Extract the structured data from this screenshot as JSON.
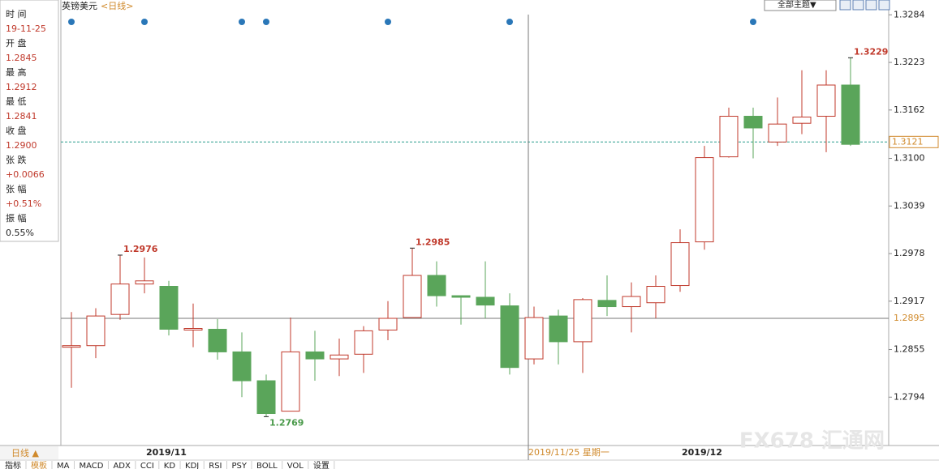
{
  "chart_data": {
    "type": "candlestick",
    "title": "英镑美元",
    "period": "<日线>",
    "theme_button": "全部主题▼",
    "categories": [
      null,
      null,
      null,
      "2019/11",
      null,
      null,
      null,
      null,
      null,
      null,
      null,
      null,
      null,
      null,
      null,
      null,
      null,
      null,
      null,
      null,
      null,
      null,
      null,
      null,
      null,
      "2019/12",
      null,
      null,
      null,
      null,
      null,
      null,
      null
    ],
    "open": [
      1.2858,
      1.286,
      1.29,
      1.2939,
      1.2936,
      1.288,
      1.2881,
      1.2852,
      1.2815,
      1.2776,
      1.2852,
      1.2843,
      1.2849,
      1.288,
      1.2896,
      1.295,
      1.2924,
      1.2922,
      1.2911,
      1.2843,
      1.2898,
      1.2865,
      1.2918,
      1.291,
      1.2915,
      1.2937,
      1.2993,
      1.3102,
      1.3154,
      1.3121,
      1.3145,
      1.3154,
      1.3194
    ],
    "high": [
      1.2903,
      1.2908,
      1.2976,
      1.2973,
      1.2943,
      1.2914,
      1.2894,
      1.2877,
      1.2823,
      1.2896,
      1.2879,
      1.2869,
      1.2885,
      1.2917,
      1.2985,
      1.2968,
      1.2924,
      1.2968,
      1.2927,
      1.291,
      1.2906,
      1.2921,
      1.295,
      1.2941,
      1.295,
      1.3009,
      1.3116,
      1.3165,
      1.3165,
      1.3178,
      1.3213,
      1.3213,
      1.3229
    ],
    "low": [
      1.2806,
      1.2844,
      1.2893,
      1.2927,
      1.2873,
      1.2858,
      1.2842,
      1.2794,
      1.2769,
      1.2776,
      1.2815,
      1.2821,
      1.2825,
      1.2867,
      1.2896,
      1.291,
      1.2887,
      1.2895,
      1.2823,
      1.2836,
      1.2836,
      1.2825,
      1.2898,
      1.2877,
      1.2895,
      1.2929,
      1.2983,
      1.3101,
      1.31,
      1.3116,
      1.3131,
      1.3108,
      1.3116
    ],
    "close": [
      1.286,
      1.2898,
      1.2939,
      1.2943,
      1.2881,
      1.2882,
      1.2852,
      1.2815,
      1.2773,
      1.2852,
      1.2843,
      1.2848,
      1.2879,
      1.2895,
      1.295,
      1.2924,
      1.2922,
      1.2912,
      1.2832,
      1.2896,
      1.2865,
      1.2919,
      1.291,
      1.2923,
      1.2936,
      1.2992,
      1.3101,
      1.3154,
      1.3139,
      1.3144,
      1.3153,
      1.3194,
      1.3118
    ],
    "up_color": "#c0392b",
    "down_color": "#5aa55a",
    "ylim": [
      1.2732,
      1.3303
    ],
    "yticks": [
      1.2794,
      1.2855,
      1.2917,
      1.2978,
      1.3039,
      {
        "value": 1.31,
        "label": "1.3100"
      },
      1.3162,
      1.3223,
      1.3284
    ],
    "last_price": 1.3121,
    "crosshair": {
      "date": "2019/11/25 星期一",
      "price": 1.2895
    },
    "period_button": "日线 ▲",
    "info_panel": [
      {
        "label": "时 间",
        "value": "19-11-25"
      },
      {
        "label": "开 盘",
        "value": "1.2845"
      },
      {
        "label": "最 高",
        "value": "1.2912"
      },
      {
        "label": "最 低",
        "value": "1.2841"
      },
      {
        "label": "收 盘",
        "value": "1.2900"
      },
      {
        "label": "张 跌",
        "value": "+0.0066"
      },
      {
        "label": "张 幅",
        "value": "+0.51%"
      },
      {
        "label": "振 幅",
        "value": "0.55%"
      }
    ],
    "tabs": [
      "指标",
      "模板",
      "MA",
      "MACD",
      "ADX",
      "CCI",
      "KD",
      "KDJ",
      "RSI",
      "PSY",
      "BOLL",
      "VOL",
      "设置"
    ],
    "watermark": "FX678 汇通网"
  }
}
